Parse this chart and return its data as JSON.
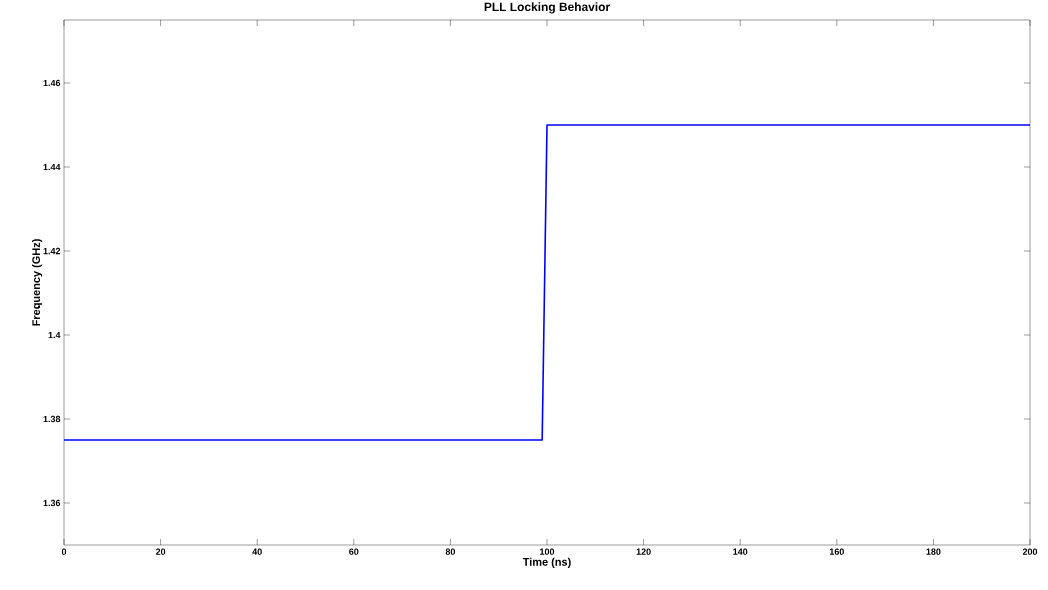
{
  "chart_data": {
    "type": "line",
    "title": "PLL Locking Behavior",
    "xlabel": "Time (ns)",
    "ylabel": "Frequency (GHz)",
    "x": [
      0,
      99,
      100,
      200
    ],
    "series": [
      {
        "color": "#0000ff",
        "values": [
          1.375,
          1.375,
          1.45,
          1.45
        ]
      }
    ],
    "xlim": [
      0,
      200
    ],
    "ylim": [
      1.35,
      1.475
    ],
    "xticks": [
      0,
      20,
      40,
      60,
      80,
      100,
      120,
      140,
      160,
      180,
      200
    ],
    "yticks": [
      1.36,
      1.38,
      1.4,
      1.42,
      1.44,
      1.46
    ],
    "line_style": "solid",
    "grid": false
  }
}
